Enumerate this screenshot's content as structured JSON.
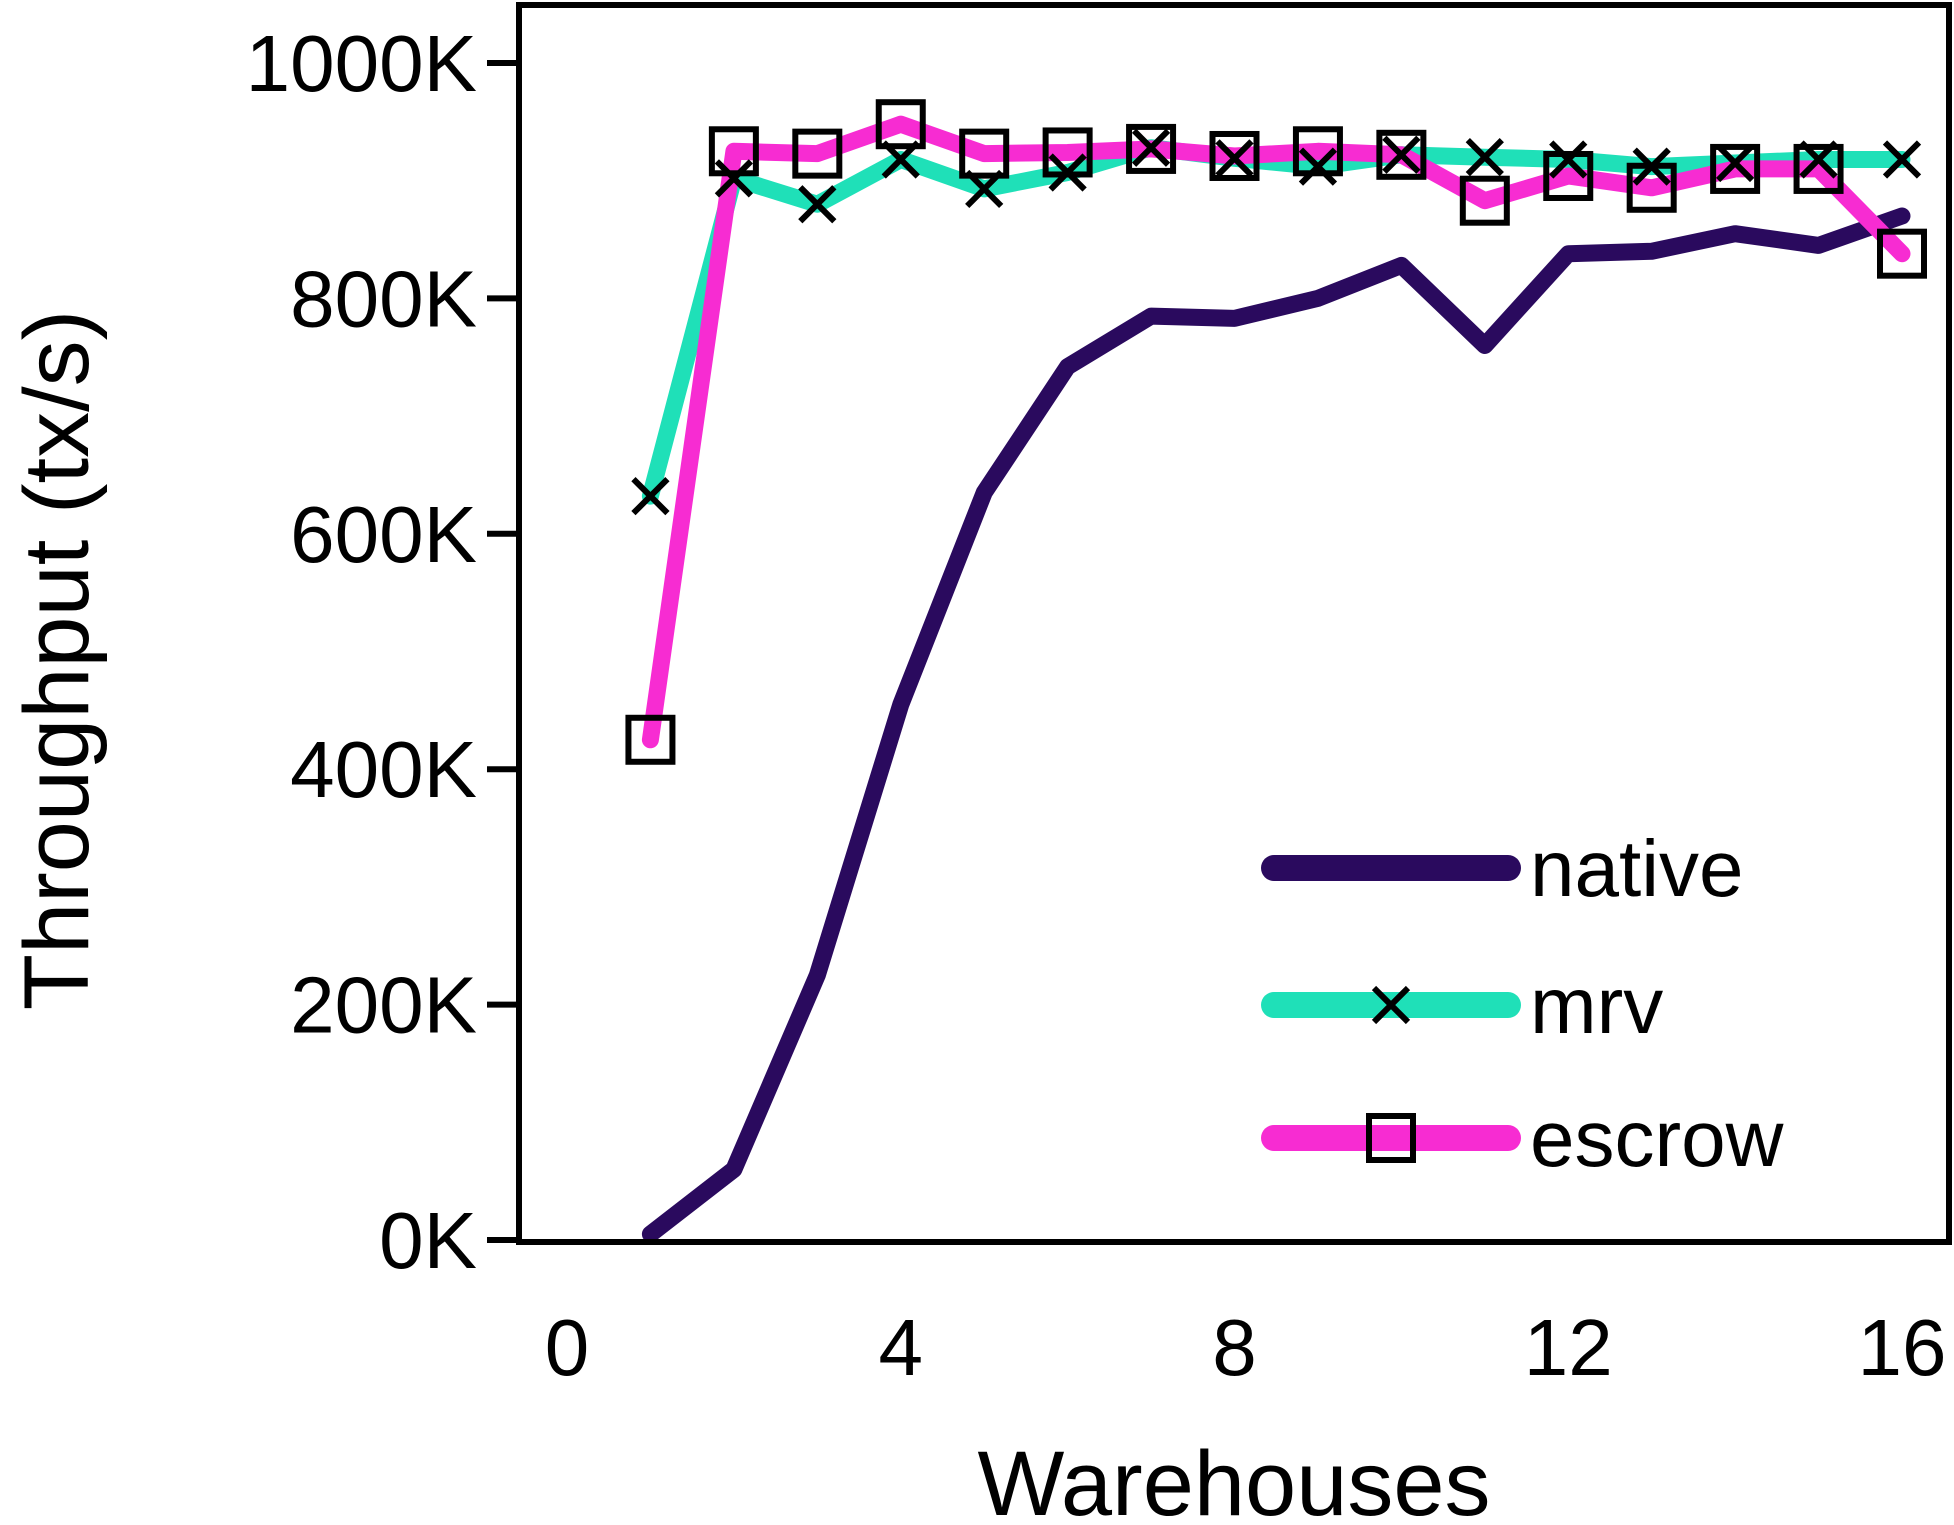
{
  "chart_data": {
    "type": "line",
    "title": "",
    "xlabel": "Warehouses",
    "ylabel": "Throughput (tx/s)",
    "xlim": [
      0,
      16
    ],
    "ylim": [
      0,
      1000000
    ],
    "x_ticks": [
      0,
      4,
      8,
      12,
      16
    ],
    "x_tick_labels": [
      "0",
      "4",
      "8",
      "12",
      "16"
    ],
    "y_ticks": [
      0,
      200000,
      400000,
      600000,
      800000,
      1000000
    ],
    "y_tick_labels": [
      "0K",
      "200K",
      "400K",
      "600K",
      "800K",
      "1000K"
    ],
    "grid": false,
    "legend_position": "bottom-right",
    "x": [
      1,
      2,
      3,
      4,
      5,
      6,
      7,
      8,
      9,
      10,
      11,
      12,
      13,
      14,
      15,
      16
    ],
    "series": [
      {
        "name": "native",
        "color": "#2a0a5e",
        "marker": "none",
        "values": [
          5000,
          60000,
          225000,
          455000,
          635000,
          742000,
          785000,
          783000,
          800000,
          828000,
          760000,
          838000,
          840000,
          855000,
          845000,
          870000
        ]
      },
      {
        "name": "mrv",
        "color": "#1fe0b8",
        "marker": "x",
        "values": [
          632000,
          902000,
          880000,
          918000,
          893000,
          907000,
          928000,
          919000,
          912000,
          922000,
          920000,
          918000,
          912000,
          915000,
          918000,
          918000
        ]
      },
      {
        "name": "escrow",
        "color": "#f72cd2",
        "marker": "square",
        "values": [
          425000,
          925000,
          923000,
          948000,
          923000,
          924000,
          927000,
          921000,
          925000,
          922000,
          883000,
          904000,
          894000,
          910000,
          910000,
          838000
        ]
      }
    ]
  }
}
